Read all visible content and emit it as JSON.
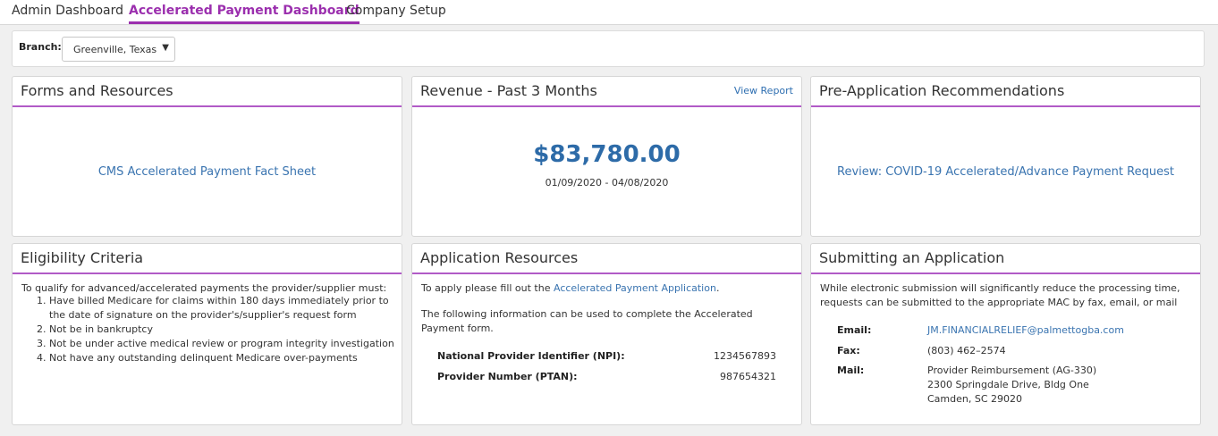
{
  "nav": {
    "tabs": [
      {
        "label": "Admin Dashboard",
        "active": false
      },
      {
        "label": "Accelerated Payment Dashboard",
        "active": true
      },
      {
        "label": "Company Setup",
        "active": false
      }
    ]
  },
  "branch": {
    "label": "Branch:",
    "selected": "Greenville, Texas"
  },
  "forms": {
    "title": "Forms and Resources",
    "link": "CMS Accelerated Payment Fact Sheet"
  },
  "revenue": {
    "title": "Revenue - Past 3 Months",
    "view_report": "View Report",
    "amount": "$83,780.00",
    "date_range": "01/09/2020 - 04/08/2020"
  },
  "preapp": {
    "title": "Pre-Application Recommendations",
    "link": "Review: COVID-19 Accelerated/Advance Payment Request"
  },
  "eligibility": {
    "title": "Eligibility Criteria",
    "intro": "To qualify for advanced/accelerated payments the provider/supplier must:",
    "criteria": [
      "Have billed Medicare for claims within 180 days immediately prior to the date of signature on the provider's/supplier's request form",
      "Not be in bankruptcy",
      "Not be under active medical review or program integrity investigation",
      "Not have any outstanding delinquent Medicare over-payments"
    ]
  },
  "appres": {
    "title": "Application Resources",
    "intro_prefix": "To apply please fill out the ",
    "intro_link": "Accelerated Payment Application",
    "intro_suffix": ".",
    "info": "The following information can be used to complete the Accelerated Payment form.",
    "npi_label": "National Provider Identifier (NPI):",
    "npi_value": "1234567893",
    "ptan_label": "Provider Number (PTAN):",
    "ptan_value": "987654321"
  },
  "submit": {
    "title": "Submitting an Application",
    "intro": "While electronic submission will significantly reduce the processing time, requests can be submitted to the appropriate MAC by fax, email, or mail",
    "email_label": "Email:",
    "email_value": "JM.FINANCIALRELIEF@palmettogba.com",
    "fax_label": "Fax:",
    "fax_value": "(803) 462–2574",
    "mail_label": "Mail:",
    "mail_line1": "Provider Reimbursement (AG-330)",
    "mail_line2": "2300 Springdale Drive, Bldg One",
    "mail_line3": "Camden, SC 29020"
  },
  "colors": {
    "accent": "#9b2fae",
    "link": "#3a74b0",
    "amount": "#2d6ba8"
  }
}
